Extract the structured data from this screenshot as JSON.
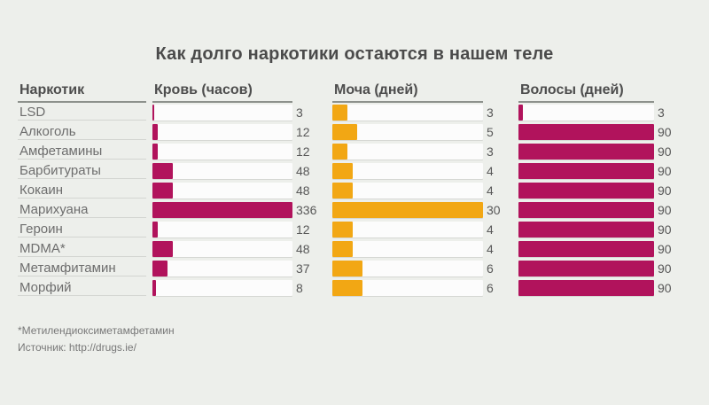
{
  "page": {
    "background_color": "#edefeb",
    "track_color": "#fcfcfc"
  },
  "footnotes": {
    "mdma_note": "*Метилендиоксиметамфетамин",
    "source": "Источник: http://drugs.ie/"
  },
  "chart_data": {
    "type": "bar",
    "orientation": "horizontal",
    "title": "Как долго наркотики остаются в нашем теле",
    "row_header": "Наркотик",
    "grid": "off",
    "legend": "none",
    "value_labels": "right-of-track",
    "columns": [
      {
        "key": "blood",
        "label": "Кровь (часов)",
        "unit": "часов",
        "max": 336,
        "color": "#b1135c"
      },
      {
        "key": "urine",
        "label": "Моча (дней)",
        "unit": "дней",
        "max": 30,
        "color": "#f2a714"
      },
      {
        "key": "hair",
        "label": "Волосы (дней)",
        "unit": "дней",
        "max": 90,
        "color": "#b1135c"
      }
    ],
    "rows": [
      {
        "drug": "LSD",
        "blood": 3,
        "urine": 3,
        "hair": 3
      },
      {
        "drug": "Алкоголь",
        "blood": 12,
        "urine": 5,
        "hair": 90
      },
      {
        "drug": "Амфетамины",
        "blood": 12,
        "urine": 3,
        "hair": 90
      },
      {
        "drug": "Барбитураты",
        "blood": 48,
        "urine": 4,
        "hair": 90
      },
      {
        "drug": "Кокаин",
        "blood": 48,
        "urine": 4,
        "hair": 90
      },
      {
        "drug": "Марихуана",
        "blood": 336,
        "urine": 30,
        "hair": 90
      },
      {
        "drug": "Героин",
        "blood": 12,
        "urine": 4,
        "hair": 90
      },
      {
        "drug": "MDMA*",
        "blood": 48,
        "urine": 4,
        "hair": 90
      },
      {
        "drug": "Метамфитамин",
        "blood": 37,
        "urine": 6,
        "hair": 90
      },
      {
        "drug": "Морфий",
        "blood": 8,
        "urine": 6,
        "hair": 90
      }
    ]
  }
}
